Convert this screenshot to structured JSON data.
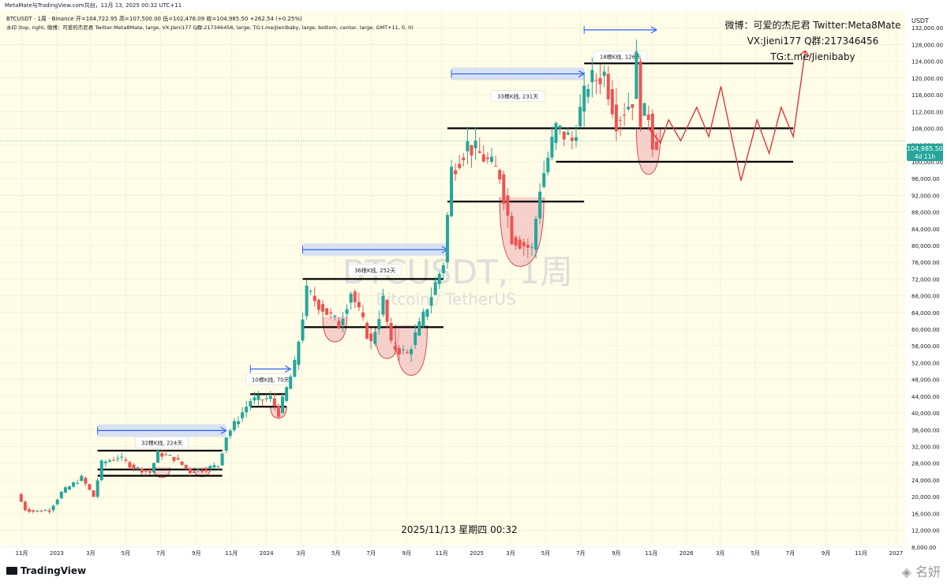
{
  "header": {
    "publisher_line": "MetaMate与TradingView.com共创，11月 13, 2025 00:32 UTC+11",
    "symbol_line": "BTCUSDT · 1周 · Binance  开=104,722.95  高=107,500.00  低=102,476.09  收=104,985.50  +262.54 (+0.25%)",
    "watermark_settings_line": "水印 (top, right, 微博：可爱的杰尼君 Twitter:Meta8Mate, large, VX:Jieni177 Q群:217346456, large, TG:t.me/Jienibaby, large, bottom, center, large, GMT+11, 0, 0)"
  },
  "author_watermark": {
    "line1": "微博：可爱的杰尼君 Twitter:Meta8Mate",
    "line2": "VX:Jieni177 Q群:217346456",
    "line3": "TG:t.me/Jienibaby"
  },
  "symbol_watermark": {
    "main": "BTCUSDT, 1周",
    "sub": "Bitcoin / TetherUS"
  },
  "timestamp": "2025/11/13 星期四 00:32",
  "footer": {
    "brand": "TradingView",
    "corner_mark": "名妍"
  },
  "price_tag": {
    "value": "104,985.50",
    "countdown": "4d 11h"
  },
  "colors": {
    "background": "#fffde8",
    "bullish": "#26a69a",
    "bearish": "#ef5350",
    "level_line": "#000000",
    "arrow_blue": "#2962ff",
    "range_fill": "#c9d6f5",
    "projection": "#e0353b",
    "cup_fill": "#f3c2c2"
  },
  "chart_data": {
    "type": "candlestick",
    "symbol": "BTCUSDT",
    "interval": "1周",
    "exchange": "Binance",
    "currency_label": "USDT",
    "ylim": [
      4000,
      136000
    ],
    "y_ticks": [
      8000,
      12000,
      16000,
      20000,
      24000,
      28000,
      32000,
      36000,
      40000,
      44000,
      48000,
      52000,
      56000,
      60000,
      64000,
      68000,
      72000,
      76000,
      80000,
      84000,
      88000,
      92000,
      96000,
      100000,
      104000,
      108000,
      112000,
      116000,
      120000,
      124000,
      128000,
      132000
    ],
    "x_ticks": [
      {
        "label": "11月",
        "date": "2022-11-01"
      },
      {
        "label": "2023",
        "date": "2023-01-01"
      },
      {
        "label": "3月",
        "date": "2023-03-01"
      },
      {
        "label": "5月",
        "date": "2023-05-01"
      },
      {
        "label": "7月",
        "date": "2023-07-01"
      },
      {
        "label": "9月",
        "date": "2023-09-01"
      },
      {
        "label": "11月",
        "date": "2023-11-01"
      },
      {
        "label": "2024",
        "date": "2024-01-01"
      },
      {
        "label": "3月",
        "date": "2024-03-01"
      },
      {
        "label": "5月",
        "date": "2024-05-01"
      },
      {
        "label": "7月",
        "date": "2024-07-01"
      },
      {
        "label": "9月",
        "date": "2024-09-01"
      },
      {
        "label": "11月",
        "date": "2024-11-01"
      },
      {
        "label": "2025",
        "date": "2025-01-01"
      },
      {
        "label": "3月",
        "date": "2025-03-01"
      },
      {
        "label": "5月",
        "date": "2025-05-01"
      },
      {
        "label": "7月",
        "date": "2025-07-01"
      },
      {
        "label": "9月",
        "date": "2025-09-01"
      },
      {
        "label": "11月",
        "date": "2025-11-01"
      },
      {
        "label": "2026",
        "date": "2026-01-01"
      },
      {
        "label": "3月",
        "date": "2026-03-01"
      },
      {
        "label": "5月",
        "date": "2026-05-01"
      },
      {
        "label": "7月",
        "date": "2026-07-01"
      },
      {
        "label": "9月",
        "date": "2026-09-01"
      },
      {
        "label": "11月",
        "date": "2026-11-01"
      },
      {
        "label": "2027",
        "date": "2027-01-01"
      }
    ],
    "last_price": 104985.5,
    "ohlc_anchors": [
      [
        "2022-10-24",
        20600
      ],
      [
        "2022-11-07",
        17000
      ],
      [
        "2022-11-21",
        16500
      ],
      [
        "2022-12-19",
        16800
      ],
      [
        "2023-01-09",
        21000
      ],
      [
        "2023-02-13",
        24500
      ],
      [
        "2023-03-06",
        20000
      ],
      [
        "2023-03-20",
        28000
      ],
      [
        "2023-04-17",
        29500
      ],
      [
        "2023-05-15",
        27000
      ],
      [
        "2023-06-12",
        25800
      ],
      [
        "2023-06-26",
        30400
      ],
      [
        "2023-07-24",
        29200
      ],
      [
        "2023-08-21",
        26000
      ],
      [
        "2023-09-11",
        26500
      ],
      [
        "2023-10-09",
        27500
      ],
      [
        "2023-10-23",
        34500
      ],
      [
        "2023-12-04",
        43000
      ],
      [
        "2024-01-08",
        43500
      ],
      [
        "2024-01-22",
        40000
      ],
      [
        "2024-02-19",
        51500
      ],
      [
        "2024-03-11",
        69000
      ],
      [
        "2024-04-15",
        64000
      ],
      [
        "2024-05-06",
        61000
      ],
      [
        "2024-05-27",
        69000
      ],
      [
        "2024-07-01",
        56500
      ],
      [
        "2024-07-22",
        67000
      ],
      [
        "2024-08-05",
        56000
      ],
      [
        "2024-09-02",
        54000
      ],
      [
        "2024-09-30",
        63000
      ],
      [
        "2024-11-04",
        76000
      ],
      [
        "2024-11-18",
        98000
      ],
      [
        "2024-12-16",
        104000
      ],
      [
        "2025-01-13",
        101000
      ],
      [
        "2025-02-10",
        97000
      ],
      [
        "2025-03-03",
        82000
      ],
      [
        "2025-04-07",
        79000
      ],
      [
        "2025-04-21",
        94000
      ],
      [
        "2025-05-19",
        108000
      ],
      [
        "2025-06-16",
        105000
      ],
      [
        "2025-07-14",
        119000
      ],
      [
        "2025-08-11",
        121000
      ],
      [
        "2025-09-01",
        110000
      ],
      [
        "2025-09-29",
        115000
      ],
      [
        "2025-10-06",
        124000
      ],
      [
        "2025-10-13",
        111000
      ],
      [
        "2025-10-27",
        111500
      ],
      [
        "2025-11-03",
        104900
      ],
      [
        "2025-11-10",
        104985.5
      ]
    ],
    "horizontal_levels": [
      {
        "price": 31000,
        "from": "2023-03-13",
        "to": "2023-10-16"
      },
      {
        "price": 26500,
        "from": "2023-03-13",
        "to": "2023-10-16"
      },
      {
        "price": 25000,
        "from": "2023-03-13",
        "to": "2023-10-16"
      },
      {
        "price": 44500,
        "from": "2023-12-04",
        "to": "2024-02-05"
      },
      {
        "price": 41500,
        "from": "2023-12-04",
        "to": "2024-02-05"
      },
      {
        "price": 72000,
        "from": "2024-03-04",
        "to": "2024-11-04"
      },
      {
        "price": 60500,
        "from": "2024-03-04",
        "to": "2024-11-04"
      },
      {
        "price": 108000,
        "from": "2024-11-11",
        "to": "2026-07-06"
      },
      {
        "price": 90500,
        "from": "2024-11-11",
        "to": "2025-07-07"
      },
      {
        "price": 123500,
        "from": "2025-07-07",
        "to": "2026-07-06"
      },
      {
        "price": 100000,
        "from": "2025-05-19",
        "to": "2026-07-06"
      }
    ],
    "range_annotations": [
      {
        "label": "32根K线, 224天",
        "from": "2023-03-13",
        "to": "2023-10-23",
        "arrow_price": 35800,
        "label_price": 32800
      },
      {
        "label": "10根K线, 70天",
        "from": "2023-12-04",
        "to": "2024-02-12",
        "arrow_price": 50500,
        "label_price": 47800
      },
      {
        "label": "36根K线, 252天",
        "from": "2024-03-04",
        "to": "2024-11-11",
        "arrow_price": 79000,
        "label_price": 74000
      },
      {
        "label": "33根K线, 231天",
        "from": "2024-11-18",
        "to": "2025-07-07",
        "arrow_price": 121000,
        "label_price": 115500
      },
      {
        "label": "18根K线, 126天",
        "from": "2025-07-07",
        "to": "2025-11-10",
        "arrow_price": 131500,
        "label_price": 125000
      }
    ],
    "projection_path": [
      [
        "2025-10-27",
        108000
      ],
      [
        "2025-11-17",
        104500
      ],
      [
        "2025-12-01",
        110000
      ],
      [
        "2025-12-22",
        105000
      ],
      [
        "2026-01-19",
        113000
      ],
      [
        "2026-02-09",
        106000
      ],
      [
        "2026-03-02",
        118000
      ],
      [
        "2026-04-06",
        95500
      ],
      [
        "2026-05-04",
        110000
      ],
      [
        "2026-05-25",
        102000
      ],
      [
        "2026-06-15",
        113000
      ],
      [
        "2026-07-06",
        106000
      ],
      [
        "2026-07-27",
        126500
      ]
    ]
  }
}
